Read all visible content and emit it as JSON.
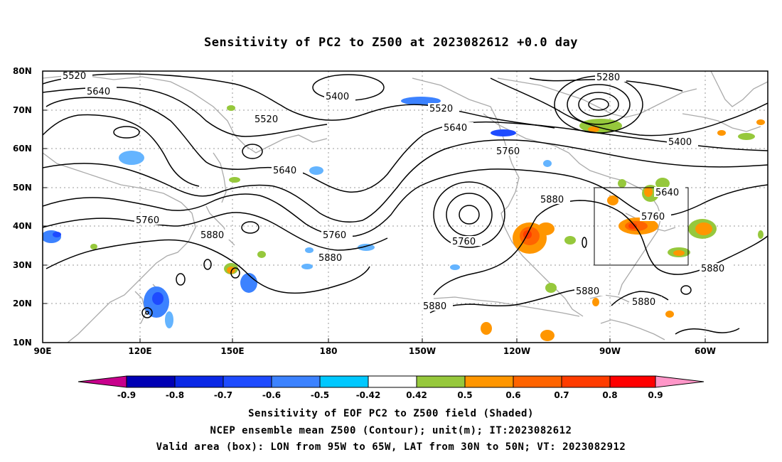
{
  "title": "Sensitivity of PC2 to Z500 at 2023082612 +0.0 day",
  "map": {
    "projection": "cylindrical equidistant",
    "lon_range": [
      "90E",
      "40W"
    ],
    "lat_range": [
      "10N",
      "80N"
    ],
    "lat_ticks": [
      "80N",
      "70N",
      "60N",
      "50N",
      "40N",
      "30N",
      "20N",
      "10N"
    ],
    "lon_ticks": [
      "90E",
      "120E",
      "150E",
      "180",
      "150W",
      "120W",
      "90W",
      "60W"
    ],
    "contour_labels": [
      "5520",
      "5640",
      "5400",
      "5520",
      "5280",
      "5640",
      "5760",
      "5400",
      "5520",
      "5640",
      "5880",
      "5760",
      "5760",
      "5880",
      "5640",
      "5760",
      "5880",
      "5760",
      "5880",
      "5880",
      "5880",
      "5880"
    ],
    "valid_area_box": {
      "lon_from": "95W",
      "lon_to": "65W",
      "lat_from": "30N",
      "lat_to": "50N"
    }
  },
  "colorbar": {
    "labels": [
      "-0.9",
      "-0.8",
      "-0.7",
      "-0.6",
      "-0.5",
      "-0.42",
      "0.42",
      "0.5",
      "0.6",
      "0.7",
      "0.8",
      "0.9"
    ],
    "colors": [
      "#c8008c",
      "#0000b4",
      "#0a28e6",
      "#1e4bff",
      "#3c82ff",
      "#64b4ff",
      "#00c8ff",
      "#ffffff",
      "#96c83c",
      "#ff9600",
      "#ff6400",
      "#ff3c00",
      "#ff0000",
      "#ff96c8"
    ]
  },
  "captions": {
    "line1": "Sensitivity of EOF PC2 to Z500 field (Shaded)",
    "line2": "NCEP ensemble mean Z500 (Contour); unit(m); IT:2023082612",
    "line3": "Valid area (box): LON from 95W to 65W, LAT from 30N to 50N; VT: 2023082912"
  }
}
